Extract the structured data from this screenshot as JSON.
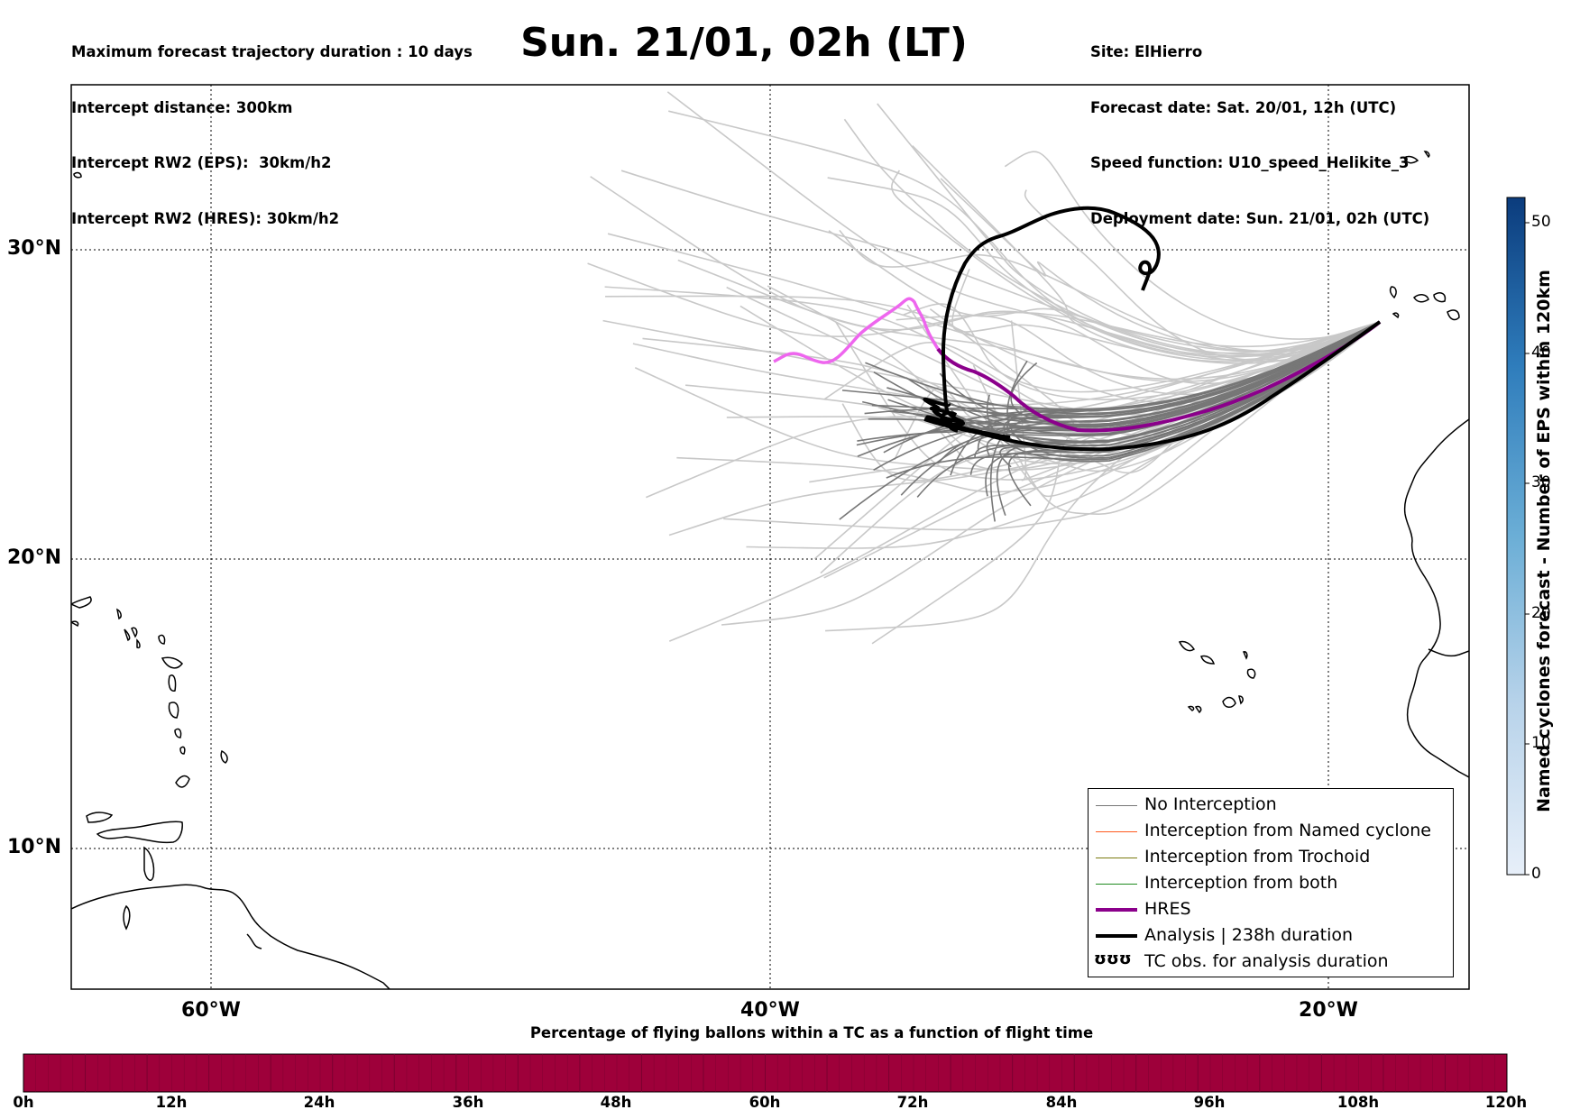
{
  "header": {
    "left_lines": [
      "Maximum forecast trajectory duration : 10 days",
      "Intercept distance: 300km",
      "Intercept RW2 (EPS):  30km/h2",
      "Intercept RW2 (HRES): 30km/h2"
    ],
    "title": "Sun. 21/01, 02h (LT)",
    "right_lines": [
      "Site: ElHierro",
      "Forecast date: Sat. 20/01, 12h (UTC)",
      "Speed function: U10_speed_Helikite_3",
      "Deployment date: Sun. 21/01, 02h (UTC)"
    ]
  },
  "map": {
    "lat_labels": [
      "30°N",
      "20°N",
      "10°N"
    ],
    "lon_labels": [
      "60°W",
      "40°W",
      "20°W"
    ],
    "colors": {
      "eps_far": "#c8c8c8",
      "eps_near": "#777777",
      "hres": "#8b008b",
      "hres_early": "#ee66ee",
      "analysis": "#000000",
      "coast": "#000000"
    }
  },
  "legend": {
    "items": [
      {
        "label": "No Interception",
        "color": "#777777"
      },
      {
        "label": "Interception from Named cyclone",
        "color": "#ff5a1f"
      },
      {
        "label": "Interception from Trochoid",
        "color": "#7a7a10"
      },
      {
        "label": "Interception from both",
        "color": "#1f8a1f"
      },
      {
        "label": "HRES",
        "color": "#8b008b"
      },
      {
        "label": "Analysis | 238h duration",
        "color": "#000000"
      },
      {
        "label": "TC obs. for analysis duration",
        "symbol": "ʊʊʊ"
      }
    ]
  },
  "colorbar": {
    "title": "Named cyclones forecast - Number of EPS within 120km",
    "ticks": [
      "0",
      "10",
      "20",
      "30",
      "40",
      "50"
    ]
  },
  "time_bar": {
    "title": "Percentage of flying ballons within a TC as a function of flight time",
    "ticks": [
      "0h",
      "12h",
      "24h",
      "36h",
      "48h",
      "60h",
      "72h",
      "84h",
      "96h",
      "108h",
      "120h"
    ],
    "fill_color": "#9e003a"
  }
}
